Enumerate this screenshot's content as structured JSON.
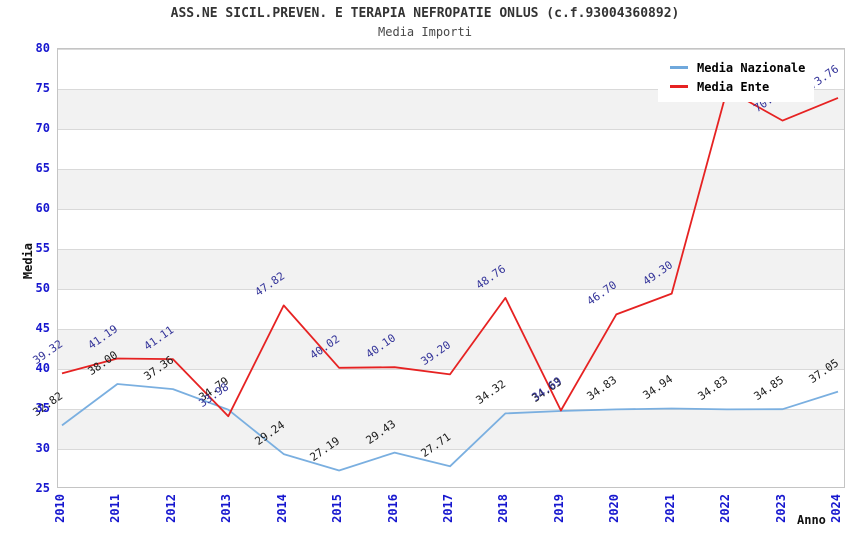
{
  "title": "ASS.NE SICIL.PREVEN. E TERAPIA NEFROPATIE ONLUS (c.f.93004360892)",
  "subtitle": "Media Importi",
  "y_axis": {
    "title": "Media",
    "ticks": [
      "80",
      "75",
      "70",
      "65",
      "60",
      "55",
      "50",
      "45",
      "40",
      "35",
      "30",
      "25"
    ]
  },
  "x_axis": {
    "title": "Anno",
    "ticks": [
      "2010",
      "2011",
      "2012",
      "2013",
      "2014",
      "2015",
      "2016",
      "2017",
      "2018",
      "2019",
      "2020",
      "2021",
      "2022",
      "2023",
      "2024"
    ]
  },
  "legend": {
    "items": [
      {
        "label": "Media Nazionale",
        "color": "#6fa8dc"
      },
      {
        "label": "Media Ente",
        "color": "#e62222"
      }
    ]
  },
  "colors": {
    "nazionale_line": "#7aafe0",
    "ente_line": "#e62222",
    "nazionale_label": "#1a1a1a",
    "ente_label": "#333399",
    "axis_tick_text": "#1717cf",
    "band_gray": "#f2f2f2",
    "gridline": "#d9d9d9"
  },
  "chart_data": {
    "type": "line",
    "title": "ASS.NE SICIL.PREVEN. E TERAPIA NEFROPATIE ONLUS (c.f.93004360892)",
    "subtitle": "Media Importi",
    "xlabel": "Anno",
    "ylabel": "Media",
    "ylim": [
      25,
      80
    ],
    "y_tick_step": 5,
    "grid": "horizontal-bands",
    "legend_position": "top-right-inside",
    "categories": [
      2010,
      2011,
      2012,
      2013,
      2014,
      2015,
      2016,
      2017,
      2018,
      2019,
      2020,
      2021,
      2022,
      2023,
      2024
    ],
    "series": [
      {
        "name": "Media Nazionale",
        "color": "#7aafe0",
        "label_color": "#1a1a1a",
        "values": [
          32.82,
          38.0,
          37.36,
          34.79,
          29.24,
          27.19,
          29.43,
          27.71,
          34.32,
          34.63,
          34.83,
          34.94,
          34.83,
          34.85,
          37.05
        ]
      },
      {
        "name": "Media Ente",
        "color": "#e62222",
        "label_color": "#333399",
        "values": [
          39.32,
          41.19,
          41.11,
          33.98,
          47.82,
          40.02,
          40.1,
          39.2,
          48.76,
          34.69,
          46.7,
          49.3,
          74.8,
          70.93,
          73.76
        ]
      }
    ],
    "note": "2022 Media Ente label and final digit of 2023 label (70.9x) are hidden behind the legend box; 2022 value estimated from line slope"
  }
}
